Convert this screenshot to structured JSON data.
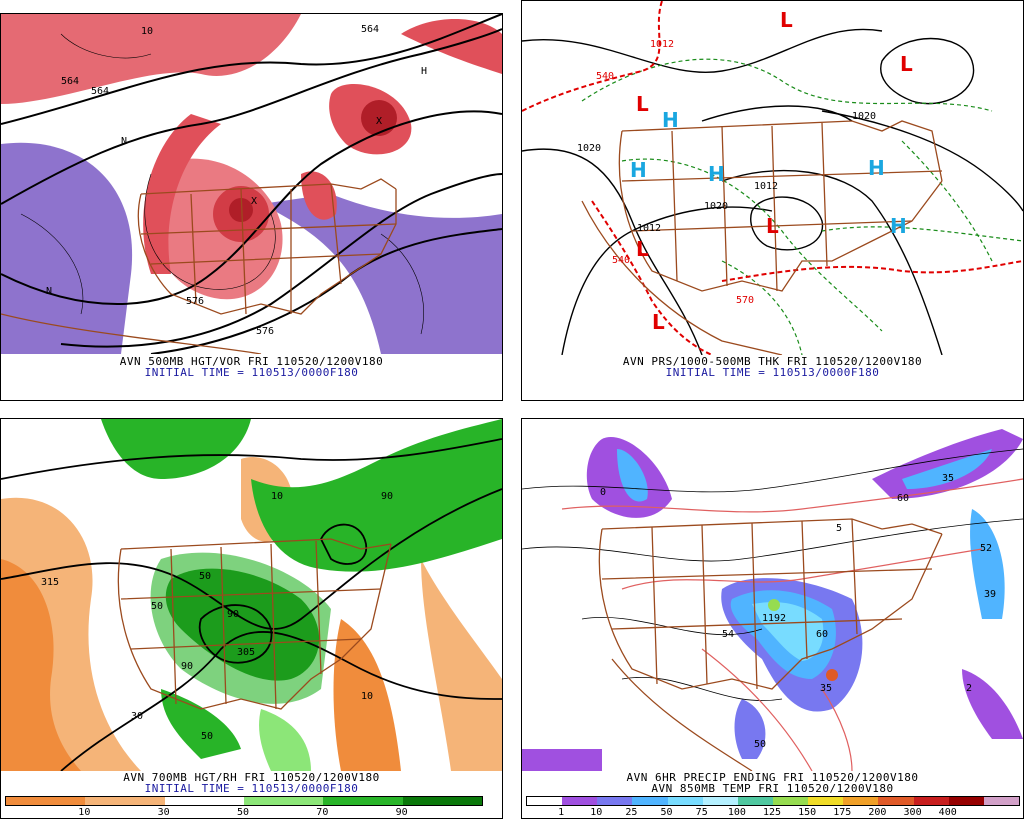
{
  "panels": [
    {
      "id": "hgt-vor",
      "caption_line1": "AVN 500MB HGT/VOR FRI 110520/1200V180",
      "caption_line2": "INITIAL TIME = 110513/0000F180",
      "contour_labels": [
        "564",
        "564",
        "576",
        "10",
        "N",
        "N",
        "X",
        "X",
        "H",
        "564",
        "576"
      ]
    },
    {
      "id": "prs-thk",
      "caption_line1": "AVN PRS/1000-500MB THK FRI 110520/1200V180",
      "caption_line2": "INITIAL TIME = 110513/0000F180",
      "centers": [
        {
          "type": "L",
          "color": "#e00000"
        },
        {
          "type": "L",
          "color": "#e00000"
        },
        {
          "type": "L",
          "color": "#e00000"
        },
        {
          "type": "L",
          "color": "#e00000"
        },
        {
          "type": "L",
          "color": "#e00000"
        },
        {
          "type": "L",
          "color": "#e00000"
        },
        {
          "type": "H",
          "color": "#1aa7e0"
        },
        {
          "type": "H",
          "color": "#1aa7e0"
        },
        {
          "type": "H",
          "color": "#1aa7e0"
        },
        {
          "type": "H",
          "color": "#1aa7e0"
        },
        {
          "type": "H",
          "color": "#1aa7e0"
        }
      ],
      "isobar_labels": [
        "1020",
        "1020",
        "1012",
        "1012",
        "1020",
        "540",
        "540",
        "570",
        "1012"
      ]
    },
    {
      "id": "hgt-rh",
      "caption_line1": "AVN 700MB HGT/RH FRI 110520/1200V180",
      "caption_line2": "INITIAL TIME = 110513/0000F180",
      "legend": {
        "colors": [
          "#f08c3c",
          "#f5b478",
          "#ffffff",
          "#8ce678",
          "#28b428",
          "#0a780a"
        ],
        "ticks": [
          "10",
          "30",
          "50",
          "70",
          "90"
        ]
      },
      "contour_labels": [
        "10",
        "50",
        "90",
        "315",
        "30",
        "50",
        "90",
        "10",
        "50",
        "90",
        "305"
      ]
    },
    {
      "id": "precip-temp",
      "caption_line1": "AVN 6HR PRECIP ENDING FRI 110520/1200V180",
      "caption_line2": "AVN 850MB TEMP FRI 110520/1200V180",
      "legend": {
        "colors": [
          "#ffffff",
          "#a050e0",
          "#7878f0",
          "#50b4ff",
          "#78dcff",
          "#b4f0ff",
          "#50c8a0",
          "#96dc50",
          "#f0dc28",
          "#f0a028",
          "#e05a28",
          "#c81e1e",
          "#960000",
          "#d2a0c8"
        ],
        "ticks": [
          "1",
          "10",
          "25",
          "50",
          "75",
          "100",
          "125",
          "150",
          "175",
          "200",
          "300",
          "400"
        ]
      },
      "contour_labels": [
        "60",
        "35",
        "52",
        "39",
        "54",
        "1192",
        "60",
        "35",
        "0",
        "5",
        "2",
        "50"
      ]
    }
  ],
  "colors": {
    "border_brown": "#9b4a1e",
    "height_contour": "#000000",
    "thickness_red": "#e00000",
    "thickness_green": "#1a8c1a",
    "vort_red": "#e0505a",
    "vort_purple": "#8264c8",
    "temp_line": "#e06060"
  }
}
